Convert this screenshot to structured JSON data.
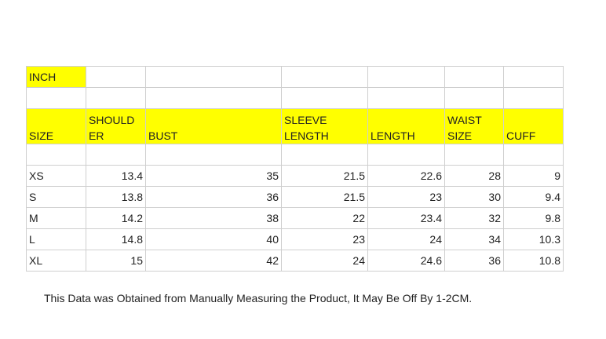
{
  "table": {
    "unit_label": "INCH",
    "headers": {
      "size": "SIZE",
      "shoulder": [
        "SHOULD",
        "ER"
      ],
      "bust": "BUST",
      "sleeve": [
        "SLEEVE",
        "LENGTH"
      ],
      "length": "LENGTH",
      "waist": [
        "WAIST",
        "SIZE"
      ],
      "cuff": "CUFF"
    },
    "rows": [
      [
        "XS",
        "13.4",
        "35",
        "21.5",
        "22.6",
        "28",
        "9"
      ],
      [
        "S",
        "13.8",
        "36",
        "21.5",
        "23",
        "30",
        "9.4"
      ],
      [
        "M",
        "14.2",
        "38",
        "22",
        "23.4",
        "32",
        "9.8"
      ],
      [
        "L",
        "14.8",
        "40",
        "23",
        "24",
        "34",
        "10.3"
      ],
      [
        "XL",
        "15",
        "42",
        "24",
        "24.6",
        "36",
        "10.8"
      ]
    ]
  },
  "note": "This Data was Obtained from Manually Measuring the Product, It May Be Off By 1-2CM.",
  "colors": {
    "highlight": "#ffff00",
    "grid": "#cfcfcf"
  }
}
